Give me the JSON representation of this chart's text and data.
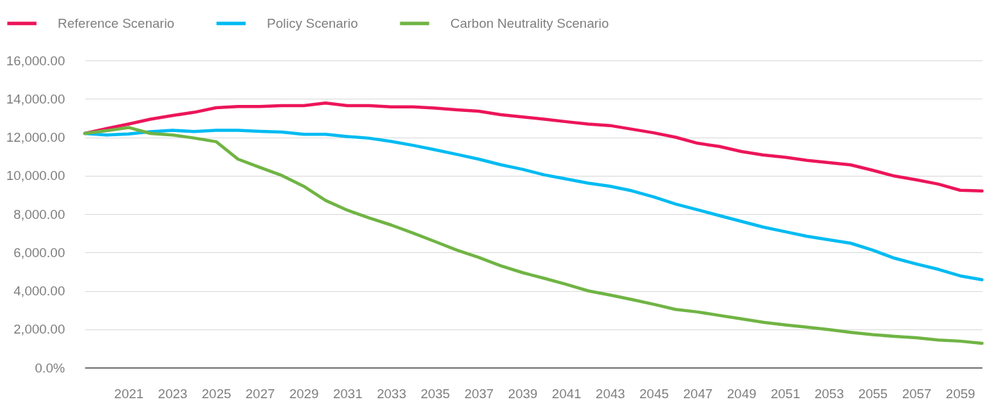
{
  "chart_data": {
    "type": "line",
    "x": [
      2019,
      2020,
      2021,
      2022,
      2023,
      2024,
      2025,
      2026,
      2027,
      2028,
      2029,
      2030,
      2031,
      2032,
      2033,
      2034,
      2035,
      2036,
      2037,
      2038,
      2039,
      2040,
      2041,
      2042,
      2043,
      2044,
      2045,
      2046,
      2047,
      2048,
      2049,
      2050,
      2051,
      2052,
      2053,
      2054,
      2055,
      2056,
      2057,
      2058,
      2059,
      2060
    ],
    "series": [
      {
        "name": "Reference Scenario",
        "color": "#ec1559",
        "values": [
          12200,
          12450,
          12690,
          12940,
          13130,
          13300,
          13540,
          13600,
          13600,
          13650,
          13650,
          13780,
          13650,
          13650,
          13580,
          13580,
          13520,
          13430,
          13360,
          13180,
          13060,
          12940,
          12810,
          12690,
          12610,
          12420,
          12230,
          12000,
          11690,
          11520,
          11260,
          11080,
          10960,
          10800,
          10680,
          10560,
          10280,
          9980,
          9780,
          9560,
          9240,
          9200
        ]
      },
      {
        "name": "Policy Scenario",
        "color": "#00bbf2",
        "values": [
          12200,
          12120,
          12170,
          12290,
          12360,
          12300,
          12360,
          12360,
          12310,
          12270,
          12150,
          12150,
          12040,
          11950,
          11780,
          11580,
          11350,
          11110,
          10860,
          10570,
          10330,
          10040,
          9830,
          9610,
          9450,
          9210,
          8890,
          8520,
          8220,
          7920,
          7620,
          7320,
          7080,
          6840,
          6660,
          6480,
          6120,
          5700,
          5400,
          5120,
          4780,
          4580
        ]
      },
      {
        "name": "Carbon Neutrality Scenario",
        "color": "#70b444",
        "values": [
          12200,
          12340,
          12510,
          12200,
          12120,
          11960,
          11770,
          10860,
          10430,
          10010,
          9450,
          8710,
          8200,
          7800,
          7430,
          7010,
          6570,
          6120,
          5740,
          5310,
          4950,
          4650,
          4340,
          4000,
          3780,
          3550,
          3300,
          3030,
          2900,
          2720,
          2540,
          2360,
          2230,
          2110,
          1980,
          1840,
          1720,
          1630,
          1560,
          1440,
          1380,
          1270
        ]
      }
    ],
    "xlim": [
      2019,
      2060
    ],
    "xticks": [
      2021,
      2023,
      2025,
      2027,
      2029,
      2031,
      2033,
      2035,
      2037,
      2039,
      2041,
      2043,
      2045,
      2047,
      2049,
      2051,
      2053,
      2055,
      2057,
      2059
    ],
    "ylim": [
      0,
      16000
    ],
    "yticks": [
      {
        "value": 0,
        "label": "0.0%"
      },
      {
        "value": 2000,
        "label": "2,000.00"
      },
      {
        "value": 4000,
        "label": "4,000.00"
      },
      {
        "value": 6000,
        "label": "6,000.00"
      },
      {
        "value": 8000,
        "label": "8,000.00"
      },
      {
        "value": 10000,
        "label": "10,000.00"
      },
      {
        "value": 12000,
        "label": "12,000.00"
      },
      {
        "value": 14000,
        "label": "14,000.00"
      },
      {
        "value": 16000,
        "label": "16,000.00"
      }
    ],
    "grid": "y",
    "legend": "top",
    "marker": "none",
    "line_style": "solid"
  }
}
